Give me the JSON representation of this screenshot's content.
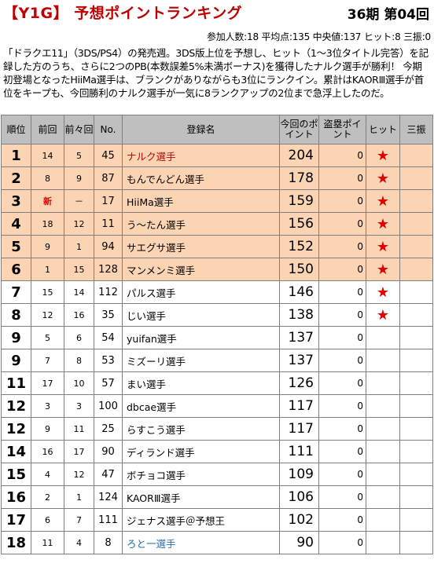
{
  "header": {
    "title": "【Y1G】 予想ポイントランキング",
    "period": "36期 第04回"
  },
  "stats": "参加人数:18 平均点:135 中央値:137 ヒット:8 三振:0",
  "description": "「ドラクエ11」（3DS/PS4）の発売週。3DS版上位を予想し、ヒット（1～3位タイトル完答）を記録した方のうち、さらに2つのPB(本数誤差5%未満ボーナス)を獲得したナルク選手が勝利！ 今期初登場となったHiiMa選手は、ブランクがありながらも3位にランクイン。累計はKAORⅢ選手が首位をキープも、今回勝利のナルク選手が一気に8ランクアップの2位まで急浮上したのだ。",
  "columns": {
    "rank": "順位",
    "prev": "前回",
    "prev2": "前々回",
    "no": "No.",
    "name": "登録名",
    "points": "今回のポイント",
    "steal": "盗塁ポイント",
    "hit": "ヒット",
    "strikeout": "三振"
  },
  "hit_mark": "★",
  "colors": {
    "title": "#c00000",
    "highlight_row": "#fbd4b4",
    "header_bg": "#bfbfbf",
    "hit_star": "#e00000",
    "name_red": "#c00000",
    "name_blue": "#1f6fb2"
  },
  "rows": [
    {
      "rank": "1",
      "prev": "14",
      "prev2": "5",
      "no": "45",
      "name": "ナルク選手",
      "points": "204",
      "steal": "0",
      "hit": true,
      "strikeout": "",
      "highlight": true,
      "name_color": "red"
    },
    {
      "rank": "2",
      "prev": "8",
      "prev2": "9",
      "no": "87",
      "name": "もんでんどん選手",
      "points": "178",
      "steal": "0",
      "hit": true,
      "strikeout": "",
      "highlight": true,
      "name_color": ""
    },
    {
      "rank": "3",
      "prev": "新",
      "prev2": "－",
      "no": "17",
      "name": "HiiMa選手",
      "points": "159",
      "steal": "0",
      "hit": true,
      "strikeout": "",
      "highlight": true,
      "name_color": ""
    },
    {
      "rank": "4",
      "prev": "18",
      "prev2": "12",
      "no": "11",
      "name": "う～たん選手",
      "points": "156",
      "steal": "0",
      "hit": true,
      "strikeout": "",
      "highlight": true,
      "name_color": ""
    },
    {
      "rank": "5",
      "prev": "9",
      "prev2": "1",
      "no": "94",
      "name": "サエグサ選手",
      "points": "152",
      "steal": "0",
      "hit": true,
      "strikeout": "",
      "highlight": true,
      "name_color": ""
    },
    {
      "rank": "6",
      "prev": "1",
      "prev2": "15",
      "no": "128",
      "name": "マンメンミ選手",
      "points": "150",
      "steal": "0",
      "hit": true,
      "strikeout": "",
      "highlight": true,
      "name_color": ""
    },
    {
      "rank": "7",
      "prev": "15",
      "prev2": "14",
      "no": "112",
      "name": "パルス選手",
      "points": "146",
      "steal": "0",
      "hit": true,
      "strikeout": "",
      "highlight": false,
      "name_color": ""
    },
    {
      "rank": "8",
      "prev": "12",
      "prev2": "16",
      "no": "35",
      "name": "じい選手",
      "points": "138",
      "steal": "0",
      "hit": true,
      "strikeout": "",
      "highlight": false,
      "name_color": ""
    },
    {
      "rank": "9",
      "prev": "5",
      "prev2": "6",
      "no": "54",
      "name": "yuifan選手",
      "points": "137",
      "steal": "0",
      "hit": false,
      "strikeout": "",
      "highlight": false,
      "name_color": ""
    },
    {
      "rank": "9",
      "prev": "7",
      "prev2": "8",
      "no": "53",
      "name": "ミズーリ選手",
      "points": "137",
      "steal": "0",
      "hit": false,
      "strikeout": "",
      "highlight": false,
      "name_color": ""
    },
    {
      "rank": "11",
      "prev": "17",
      "prev2": "10",
      "no": "57",
      "name": "まい選手",
      "points": "126",
      "steal": "0",
      "hit": false,
      "strikeout": "",
      "highlight": false,
      "name_color": ""
    },
    {
      "rank": "12",
      "prev": "3",
      "prev2": "3",
      "no": "100",
      "name": "dbcae選手",
      "points": "117",
      "steal": "0",
      "hit": false,
      "strikeout": "",
      "highlight": false,
      "name_color": ""
    },
    {
      "rank": "12",
      "prev": "9",
      "prev2": "11",
      "no": "25",
      "name": "らすこう選手",
      "points": "117",
      "steal": "0",
      "hit": false,
      "strikeout": "",
      "highlight": false,
      "name_color": ""
    },
    {
      "rank": "14",
      "prev": "16",
      "prev2": "17",
      "no": "90",
      "name": "ディランド選手",
      "points": "111",
      "steal": "0",
      "hit": false,
      "strikeout": "",
      "highlight": false,
      "name_color": ""
    },
    {
      "rank": "15",
      "prev": "4",
      "prev2": "12",
      "no": "47",
      "name": "ボチョコ選手",
      "points": "109",
      "steal": "0",
      "hit": false,
      "strikeout": "",
      "highlight": false,
      "name_color": ""
    },
    {
      "rank": "16",
      "prev": "2",
      "prev2": "1",
      "no": "124",
      "name": "KAORⅢ選手",
      "points": "106",
      "steal": "0",
      "hit": false,
      "strikeout": "",
      "highlight": false,
      "name_color": ""
    },
    {
      "rank": "17",
      "prev": "6",
      "prev2": "7",
      "no": "111",
      "name": "ジェナス選手＠予想王",
      "points": "102",
      "steal": "0",
      "hit": false,
      "strikeout": "",
      "highlight": false,
      "name_color": ""
    },
    {
      "rank": "18",
      "prev": "11",
      "prev2": "4",
      "no": "8",
      "name": "ろと一選手",
      "points": "90",
      "steal": "0",
      "hit": false,
      "strikeout": "",
      "highlight": false,
      "name_color": "blue"
    }
  ]
}
